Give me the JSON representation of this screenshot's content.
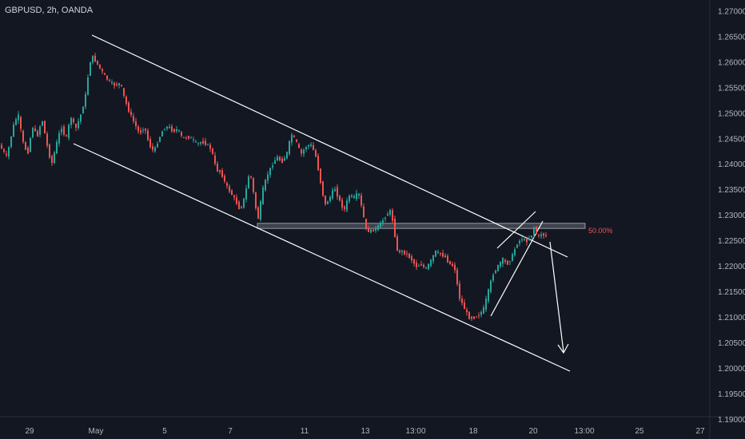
{
  "header": {
    "symbol": "GBPUSD, 2h, OANDA"
  },
  "colors": {
    "background": "#131722",
    "up": "#26a69a",
    "down": "#ef5350",
    "line": "#ffffff",
    "axis_text": "#b2b5be",
    "fib_text": "#ef5350"
  },
  "chart_data": {
    "type": "candlestick",
    "title": "GBPUSD, 2h, OANDA",
    "y_ticks": [
      "1.27000",
      "1.26500",
      "1.26000",
      "1.25500",
      "1.25000",
      "1.24500",
      "1.24000",
      "1.23500",
      "1.23000",
      "1.22500",
      "1.22000",
      "1.21500",
      "1.21000",
      "1.20500",
      "1.20000",
      "1.19500",
      "1.19000"
    ],
    "ylim": [
      1.19,
      1.271
    ],
    "x_ticks": [
      "29",
      "May",
      "5",
      "7",
      "11",
      "13",
      "13:00",
      "18",
      "20",
      "13:00",
      "25",
      "27"
    ],
    "price_path": [
      [
        0,
        1.244
      ],
      [
        10,
        1.2415
      ],
      [
        18,
        1.2475
      ],
      [
        24,
        1.25
      ],
      [
        30,
        1.2445
      ],
      [
        36,
        1.242
      ],
      [
        42,
        1.2475
      ],
      [
        48,
        1.2455
      ],
      [
        54,
        1.249
      ],
      [
        60,
        1.244
      ],
      [
        66,
        1.24
      ],
      [
        72,
        1.244
      ],
      [
        78,
        1.2475
      ],
      [
        84,
        1.245
      ],
      [
        90,
        1.2495
      ],
      [
        96,
        1.247
      ],
      [
        102,
        1.2495
      ],
      [
        108,
        1.253
      ],
      [
        113,
        1.259
      ],
      [
        116,
        1.2615
      ],
      [
        122,
        1.26
      ],
      [
        128,
        1.2585
      ],
      [
        134,
        1.257
      ],
      [
        140,
        1.256
      ],
      [
        146,
        1.2555
      ],
      [
        152,
        1.256
      ],
      [
        158,
        1.2525
      ],
      [
        164,
        1.25
      ],
      [
        170,
        1.248
      ],
      [
        176,
        1.246
      ],
      [
        182,
        1.2475
      ],
      [
        188,
        1.244
      ],
      [
        194,
        1.2425
      ],
      [
        200,
        1.245
      ],
      [
        206,
        1.247
      ],
      [
        212,
        1.2475
      ],
      [
        218,
        1.2465
      ],
      [
        224,
        1.247
      ],
      [
        230,
        1.245
      ],
      [
        236,
        1.2455
      ],
      [
        242,
        1.245
      ],
      [
        248,
        1.244
      ],
      [
        254,
        1.2445
      ],
      [
        260,
        1.244
      ],
      [
        266,
        1.243
      ],
      [
        272,
        1.239
      ],
      [
        278,
        1.2385
      ],
      [
        284,
        1.236
      ],
      [
        290,
        1.2345
      ],
      [
        296,
        1.233
      ],
      [
        302,
        1.231
      ],
      [
        308,
        1.234
      ],
      [
        314,
        1.239
      ],
      [
        320,
        1.233
      ],
      [
        324,
        1.229
      ],
      [
        330,
        1.235
      ],
      [
        336,
        1.238
      ],
      [
        342,
        1.24
      ],
      [
        348,
        1.2415
      ],
      [
        354,
        1.2405
      ],
      [
        360,
        1.242
      ],
      [
        366,
        1.246
      ],
      [
        372,
        1.2445
      ],
      [
        378,
        1.242
      ],
      [
        384,
        1.2435
      ],
      [
        390,
        1.244
      ],
      [
        396,
        1.242
      ],
      [
        402,
        1.237
      ],
      [
        408,
        1.232
      ],
      [
        414,
        1.2335
      ],
      [
        420,
        1.2355
      ],
      [
        426,
        1.233
      ],
      [
        432,
        1.231
      ],
      [
        438,
        1.234
      ],
      [
        444,
        1.2335
      ],
      [
        450,
        1.2345
      ],
      [
        456,
        1.23
      ],
      [
        460,
        1.227
      ],
      [
        466,
        1.227
      ],
      [
        472,
        1.2275
      ],
      [
        478,
        1.2285
      ],
      [
        484,
        1.23
      ],
      [
        490,
        1.231
      ],
      [
        494,
        1.228
      ],
      [
        498,
        1.223
      ],
      [
        504,
        1.223
      ],
      [
        510,
        1.2225
      ],
      [
        516,
        1.2215
      ],
      [
        522,
        1.22
      ],
      [
        528,
        1.2205
      ],
      [
        534,
        1.2195
      ],
      [
        540,
        1.221
      ],
      [
        546,
        1.223
      ],
      [
        552,
        1.2225
      ],
      [
        558,
        1.222
      ],
      [
        564,
        1.2205
      ],
      [
        570,
        1.22
      ],
      [
        576,
        1.214
      ],
      [
        582,
        1.212
      ],
      [
        588,
        1.21
      ],
      [
        594,
        1.21
      ],
      [
        600,
        1.2105
      ],
      [
        606,
        1.2115
      ],
      [
        612,
        1.215
      ],
      [
        618,
        1.2185
      ],
      [
        624,
        1.22
      ],
      [
        630,
        1.2215
      ],
      [
        636,
        1.2205
      ],
      [
        642,
        1.222
      ],
      [
        648,
        1.2245
      ],
      [
        654,
        1.2255
      ],
      [
        660,
        1.225
      ],
      [
        666,
        1.226
      ],
      [
        670,
        1.228
      ],
      [
        674,
        1.2255
      ],
      [
        678,
        1.2265
      ],
      [
        684,
        1.226
      ]
    ],
    "resistance_zone": {
      "y_low": 1.2275,
      "y_high": 1.2285,
      "label": "50.00%"
    }
  }
}
